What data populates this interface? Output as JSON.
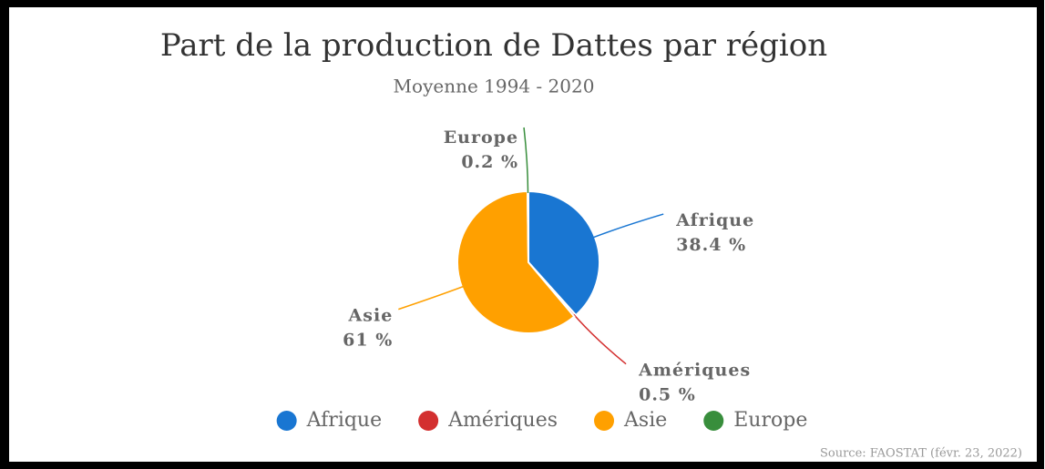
{
  "chart_data": {
    "type": "pie",
    "title": "Part de la production de Dattes par région",
    "subtitle": "Moyenne 1994 - 2020",
    "source": "Source: FAOSTAT (févr. 23, 2022)",
    "categories": [
      "Afrique",
      "Amériques",
      "Asie",
      "Europe"
    ],
    "values": [
      38.4,
      0.5,
      61,
      0.2
    ],
    "value_labels": [
      "38.4 %",
      "0.5 %",
      "61 %",
      "0.2 %"
    ],
    "colors": [
      "#1976d2",
      "#d32f2f",
      "#ffa000",
      "#388e3c"
    ],
    "legend": "bottom"
  }
}
